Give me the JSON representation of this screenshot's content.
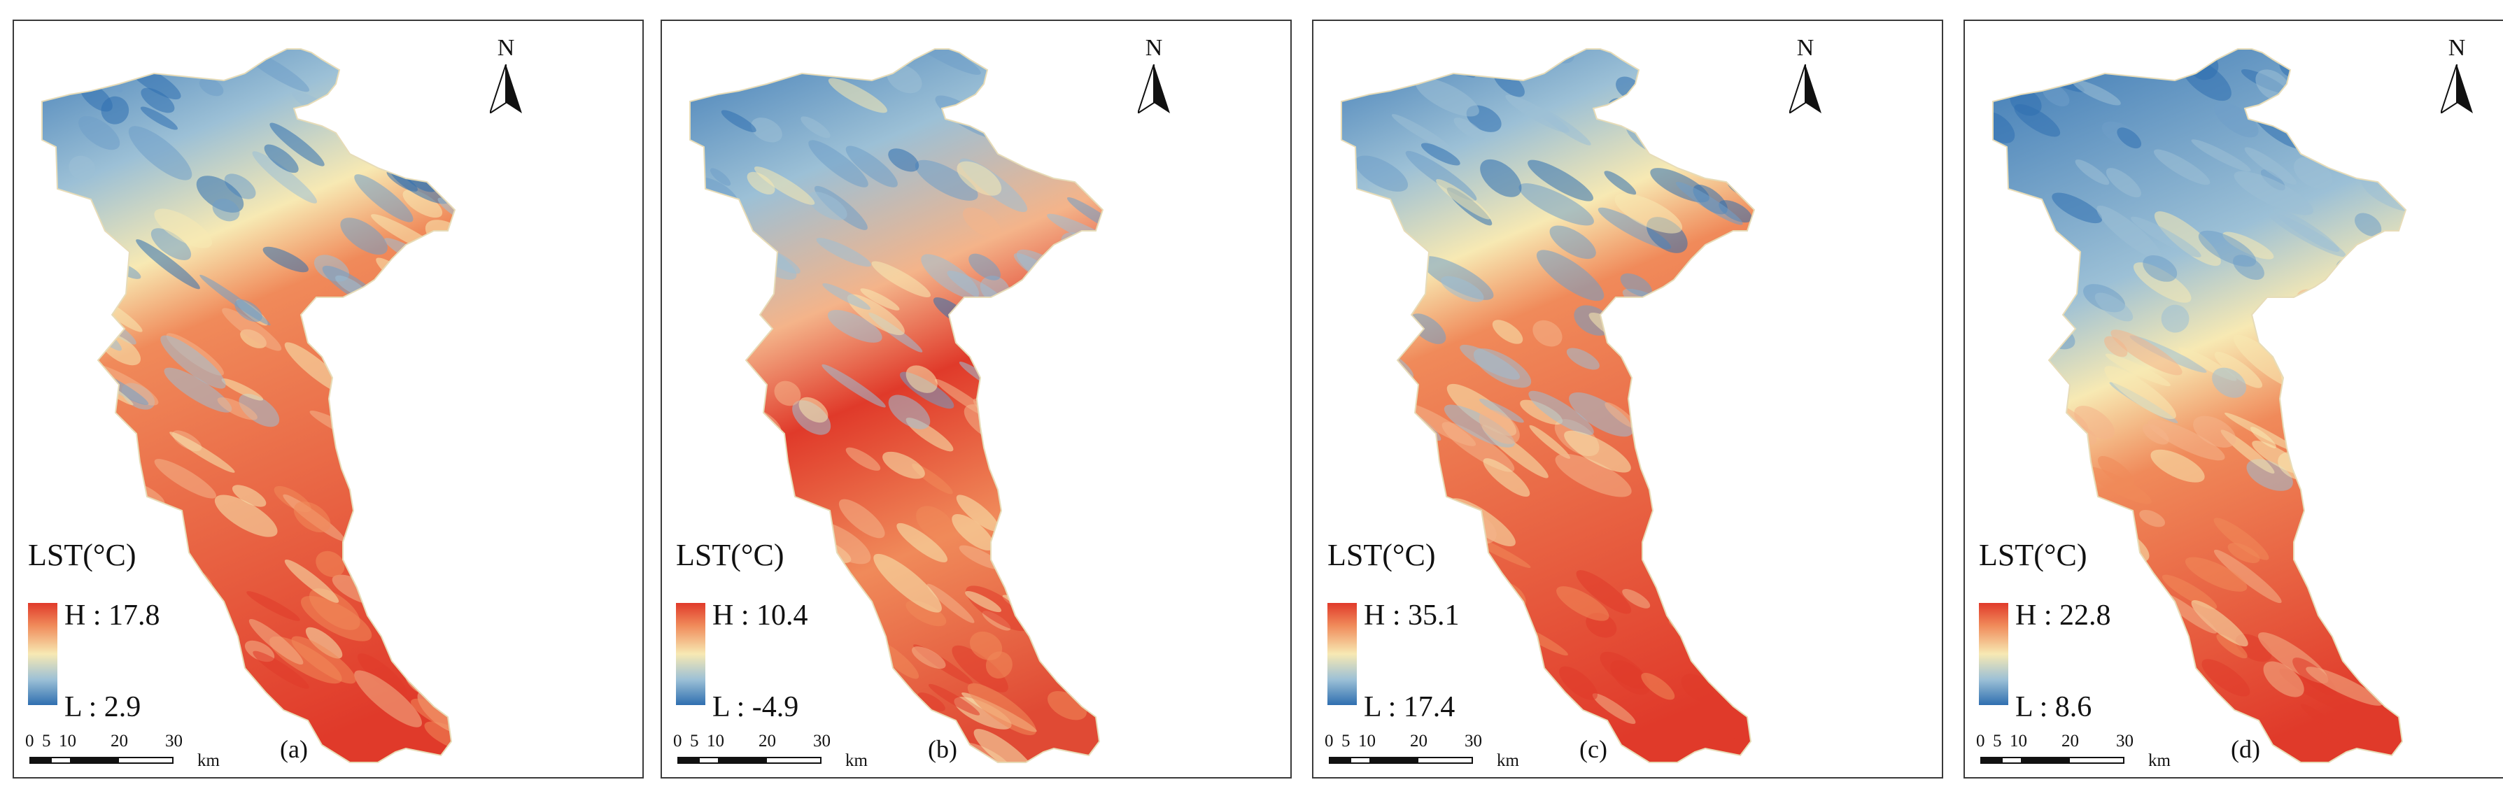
{
  "figure": {
    "north_label": "N",
    "legend_title": "LST(°C)",
    "scale_ticks": [
      "0",
      "5",
      "10",
      "20",
      "30"
    ],
    "scale_unit": "km",
    "colors": {
      "high": "#e03a2a",
      "mid": "#f7e9b3",
      "low": "#2f6fb0",
      "frame": "#3a3a3a"
    }
  },
  "panels": [
    {
      "label": "(a)",
      "high": "H : 17.8",
      "low": "L : 2.9",
      "pattern": "warm-south"
    },
    {
      "label": "(b)",
      "high": "H : 10.4",
      "low": "L : -4.9",
      "pattern": "mixed-stripes"
    },
    {
      "label": "(c)",
      "high": "H : 35.1",
      "low": "L : 17.4",
      "pattern": "warm-south"
    },
    {
      "label": "(d)",
      "high": "H : 22.8",
      "low": "L : 8.6",
      "pattern": "cool-north"
    }
  ]
}
